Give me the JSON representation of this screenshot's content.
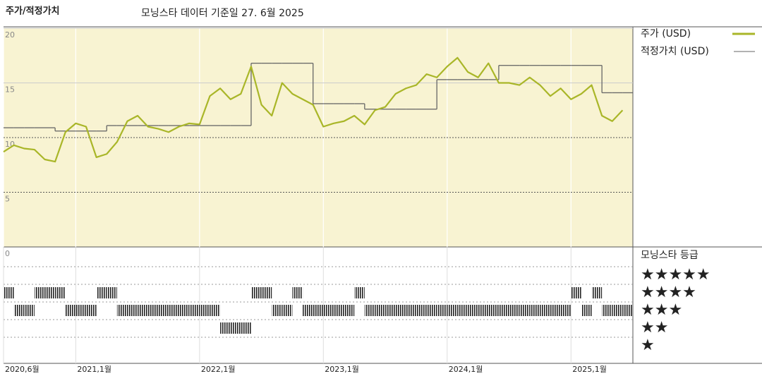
{
  "chart_data": {
    "type": "line",
    "title": "주가/적정가치",
    "subtitle": "모닝스타 데이터 기준일 27. 6월 2025",
    "x": [
      "2020-06",
      "2020-07",
      "2020-08",
      "2020-09",
      "2020-10",
      "2020-11",
      "2020-12",
      "2021-01",
      "2021-02",
      "2021-03",
      "2021-04",
      "2021-05",
      "2021-06",
      "2021-07",
      "2021-08",
      "2021-09",
      "2021-10",
      "2021-11",
      "2021-12",
      "2022-01",
      "2022-02",
      "2022-03",
      "2022-04",
      "2022-05",
      "2022-06",
      "2022-07",
      "2022-08",
      "2022-09",
      "2022-10",
      "2022-11",
      "2022-12",
      "2023-01",
      "2023-02",
      "2023-03",
      "2023-04",
      "2023-05",
      "2023-06",
      "2023-07",
      "2023-08",
      "2023-09",
      "2023-10",
      "2023-11",
      "2023-12",
      "2024-01",
      "2024-02",
      "2024-03",
      "2024-04",
      "2024-05",
      "2024-06",
      "2024-07",
      "2024-08",
      "2024-09",
      "2024-10",
      "2024-11",
      "2024-12",
      "2025-01",
      "2025-02",
      "2025-03",
      "2025-04",
      "2025-05",
      "2025-06"
    ],
    "xlim": [
      "2020-06",
      "2025-07"
    ],
    "xticks": [
      {
        "value": "2020-06",
        "label": "2020,6월"
      },
      {
        "value": "2021-01",
        "label": "2021,1월"
      },
      {
        "value": "2022-01",
        "label": "2022,1월"
      },
      {
        "value": "2023-01",
        "label": "2023,1월"
      },
      {
        "value": "2024-01",
        "label": "2024,1월"
      },
      {
        "value": "2025-01",
        "label": "2025,1월"
      }
    ],
    "ylim": [
      0,
      20
    ],
    "yticks": [
      0,
      5,
      10,
      15,
      20
    ],
    "series": [
      {
        "name": "주가 (USD)",
        "color": "#a9b628",
        "values": [
          8.7,
          9.3,
          9.0,
          8.9,
          8.0,
          7.8,
          10.5,
          11.3,
          11.0,
          8.2,
          8.5,
          9.6,
          11.5,
          12.0,
          11.0,
          10.8,
          10.5,
          11.0,
          11.3,
          11.2,
          13.8,
          14.5,
          13.5,
          14.0,
          16.5,
          13.0,
          12.0,
          15.0,
          14.0,
          13.5,
          13.0,
          11.0,
          11.3,
          11.5,
          12.0,
          11.2,
          12.5,
          12.8,
          14.0,
          14.5,
          14.8,
          15.8,
          15.5,
          16.5,
          17.3,
          16.0,
          15.5,
          16.8,
          15.0,
          15.0,
          14.8,
          15.5,
          14.8,
          13.8,
          14.5,
          13.5,
          14.0,
          14.8,
          12.0,
          11.5,
          12.5
        ]
      },
      {
        "name": "적정가치 (USD)",
        "color": "#666666",
        "values": [
          10.9,
          10.9,
          10.9,
          10.9,
          10.9,
          10.6,
          10.6,
          10.6,
          10.6,
          10.6,
          11.1,
          11.1,
          11.1,
          11.1,
          11.1,
          11.1,
          11.1,
          11.1,
          11.1,
          11.1,
          11.1,
          11.1,
          11.1,
          11.1,
          16.8,
          16.8,
          16.8,
          16.8,
          16.8,
          16.8,
          13.1,
          13.1,
          13.1,
          13.1,
          13.1,
          12.6,
          12.6,
          12.6,
          12.6,
          12.6,
          12.6,
          12.6,
          15.3,
          15.3,
          15.3,
          15.3,
          15.3,
          15.3,
          16.6,
          16.6,
          16.6,
          16.6,
          16.6,
          16.6,
          16.6,
          16.6,
          16.6,
          16.6,
          14.1,
          14.1,
          14.1
        ]
      }
    ],
    "rating": {
      "title": "모닝스타 등급",
      "labels": [
        "★★★★★",
        "★★★★",
        "★★★",
        "★★",
        "★"
      ],
      "values": [
        4,
        3,
        3,
        4,
        4,
        4,
        3,
        3,
        3,
        4,
        4,
        3,
        3,
        3,
        3,
        3,
        3,
        3,
        3,
        3,
        3,
        2,
        2,
        2,
        4,
        4,
        3,
        3,
        4,
        3,
        3,
        3,
        3,
        3,
        4,
        3,
        3,
        3,
        3,
        3,
        3,
        3,
        3,
        3,
        3,
        3,
        3,
        3,
        3,
        3,
        3,
        3,
        3,
        3,
        3,
        4,
        3,
        4,
        3,
        3,
        3
      ]
    }
  }
}
